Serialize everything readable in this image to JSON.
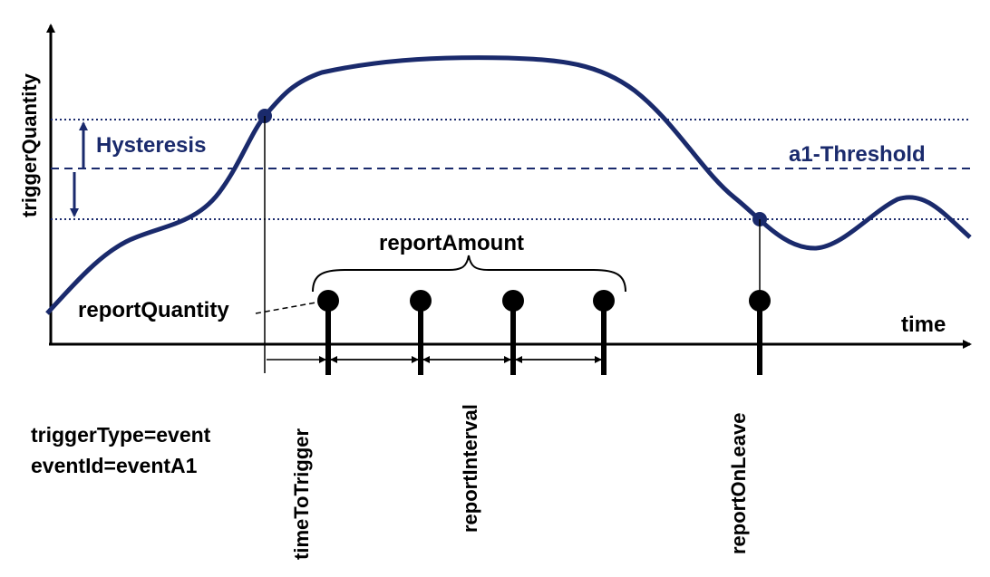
{
  "axes": {
    "y_label": "triggerQuantity",
    "x_label": "time"
  },
  "annotations": {
    "hysteresis": "Hysteresis",
    "threshold": "a1-Threshold",
    "report_amount": "reportAmount",
    "report_quantity": "reportQuantity",
    "time_to_trigger": "timeToTrigger",
    "report_interval": "reportInterval",
    "report_on_leave": "reportOnLeave"
  },
  "config": {
    "trigger_type": "triggerType=event",
    "event_id": "eventId=eventA1"
  },
  "colors": {
    "curve": "#1a2a6c",
    "threshold": "#1a2a6c",
    "axes": "#000000"
  }
}
